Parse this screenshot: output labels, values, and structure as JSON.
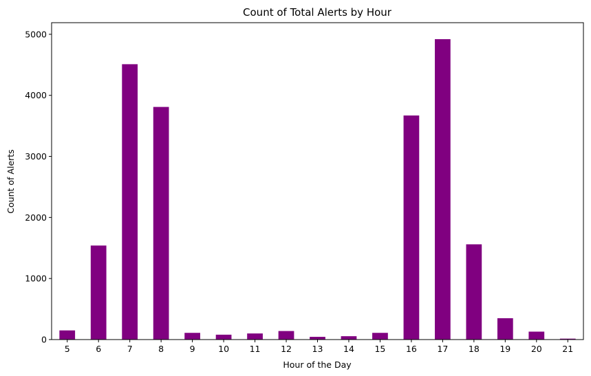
{
  "chart_data": {
    "type": "bar",
    "title": "Count of Total Alerts by Hour",
    "xlabel": "Hour of the Day",
    "ylabel": "Count of Alerts",
    "categories": [
      "5",
      "6",
      "7",
      "8",
      "9",
      "10",
      "11",
      "12",
      "13",
      "14",
      "15",
      "16",
      "17",
      "18",
      "19",
      "20",
      "21"
    ],
    "values": [
      150,
      1540,
      4510,
      3810,
      110,
      80,
      100,
      140,
      45,
      55,
      110,
      3670,
      4920,
      1560,
      350,
      130,
      15
    ],
    "yticks": [
      "0",
      "1000",
      "2000",
      "3000",
      "4000",
      "5000"
    ],
    "ylim": [
      0,
      5190
    ],
    "bar_color": "#800080",
    "grid": false,
    "legend": "none"
  }
}
